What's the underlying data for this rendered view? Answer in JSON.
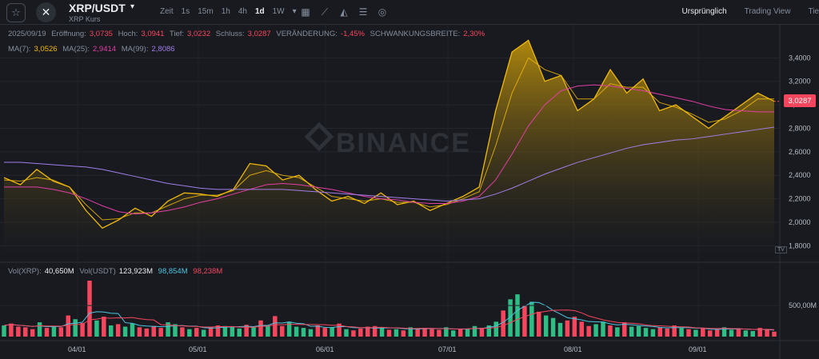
{
  "header": {
    "favorite_icon": "star-outline-icon",
    "logo_icon": "xrp-logo-icon",
    "pair": "XRP/USDT",
    "pair_caret": "▾",
    "subtitle": "XRP Kurs",
    "intervals": [
      {
        "label": "Zeit",
        "active": false
      },
      {
        "label": "1s",
        "active": false
      },
      {
        "label": "15m",
        "active": false
      },
      {
        "label": "1h",
        "active": false
      },
      {
        "label": "4h",
        "active": false
      },
      {
        "label": "1d",
        "active": true
      },
      {
        "label": "1W",
        "active": false
      },
      {
        "label": "▾",
        "active": false
      }
    ],
    "tools": [
      "calendar-icon",
      "indicator-icon",
      "chart-type-icon",
      "settings-sliders-icon",
      "target-icon"
    ],
    "views": [
      {
        "label": "Ursprünglich",
        "active": true
      },
      {
        "label": "Trading View",
        "active": false
      },
      {
        "label": "Tie",
        "active": false
      }
    ]
  },
  "ohlc_legend": {
    "date": "2025/09/19",
    "open_label": "Eröffnung:",
    "open": "3,0735",
    "high_label": "Hoch:",
    "high": "3,0941",
    "low_label": "Tief:",
    "low": "3,0232",
    "close_label": "Schluss:",
    "close": "3,0287",
    "change_label": "VERÄNDERUNG:",
    "change": "-1,45%",
    "amp_label": "SCHWANKUNGSBREITE:",
    "amp": "2,30%"
  },
  "ma_legend": {
    "ma7_label": "MA(7):",
    "ma7": "3,0526",
    "ma25_label": "MA(25):",
    "ma25": "2,9414",
    "ma99_label": "MA(99):",
    "ma99": "2,8086"
  },
  "vol_legend": {
    "vol_label": "Vol(XRP):",
    "vol": "40,650M",
    "usdt_label": "Vol(USDT)",
    "usdt": "123,923M",
    "a": "98,854M",
    "b": "98,238M"
  },
  "watermark": "BINANCE",
  "last_price_tag": "3,0287",
  "tv_tag": "TV",
  "colors": {
    "price_line": "#f0b90b",
    "ma7": "#f0b90b",
    "ma25": "#e13fa5",
    "ma99": "#a27ee8",
    "up": "#2ebd85",
    "down": "#f6465d",
    "vol_ma1": "#f6465d",
    "vol_ma2": "#4ec5de"
  },
  "chart_data": {
    "type": "area",
    "x": [
      "03/13",
      "03/17",
      "03/21",
      "03/25",
      "03/29",
      "04/02",
      "04/06",
      "04/10",
      "04/14",
      "04/18",
      "04/22",
      "04/26",
      "04/30",
      "05/04",
      "05/08",
      "05/12",
      "05/16",
      "05/20",
      "05/24",
      "05/28",
      "06/01",
      "06/05",
      "06/09",
      "06/13",
      "06/17",
      "06/21",
      "06/25",
      "06/29",
      "07/03",
      "07/07",
      "07/11",
      "07/15",
      "07/19",
      "07/23",
      "07/27",
      "07/31",
      "08/04",
      "08/08",
      "08/12",
      "08/16",
      "08/20",
      "08/24",
      "08/28",
      "09/01",
      "09/05",
      "09/09",
      "09/13",
      "09/19"
    ],
    "series": [
      {
        "values": [
          2.38,
          2.32,
          2.45,
          2.35,
          2.3,
          2.1,
          1.95,
          2.02,
          2.12,
          2.05,
          2.18,
          2.25,
          2.24,
          2.22,
          2.28,
          2.5,
          2.48,
          2.36,
          2.4,
          2.28,
          2.18,
          2.22,
          2.16,
          2.25,
          2.15,
          2.18,
          2.1,
          2.16,
          2.22,
          2.3,
          2.95,
          3.45,
          3.55,
          3.2,
          3.25,
          2.95,
          3.05,
          3.3,
          3.1,
          3.22,
          2.95,
          3.0,
          2.9,
          2.8,
          2.9,
          3.0,
          3.1,
          3.03
        ]
      },
      {
        "name": "MA(7)",
        "values": [
          2.36,
          2.35,
          2.38,
          2.36,
          2.3,
          2.15,
          2.02,
          2.03,
          2.08,
          2.08,
          2.14,
          2.2,
          2.23,
          2.23,
          2.27,
          2.4,
          2.44,
          2.4,
          2.38,
          2.3,
          2.22,
          2.2,
          2.18,
          2.2,
          2.17,
          2.17,
          2.13,
          2.15,
          2.2,
          2.26,
          2.65,
          3.1,
          3.4,
          3.3,
          3.25,
          3.05,
          3.05,
          3.18,
          3.15,
          3.15,
          3.02,
          2.98,
          2.92,
          2.85,
          2.88,
          2.95,
          3.05,
          3.05
        ]
      },
      {
        "name": "MA(25)",
        "values": [
          2.3,
          2.3,
          2.3,
          2.28,
          2.25,
          2.2,
          2.14,
          2.09,
          2.07,
          2.08,
          2.1,
          2.13,
          2.17,
          2.2,
          2.24,
          2.28,
          2.32,
          2.33,
          2.32,
          2.3,
          2.28,
          2.25,
          2.22,
          2.2,
          2.19,
          2.17,
          2.16,
          2.16,
          2.18,
          2.22,
          2.36,
          2.58,
          2.82,
          3.0,
          3.12,
          3.16,
          3.17,
          3.16,
          3.14,
          3.12,
          3.09,
          3.06,
          3.03,
          2.99,
          2.96,
          2.95,
          2.94,
          2.94
        ]
      },
      {
        "name": "MA(99)",
        "values": [
          2.51,
          2.51,
          2.5,
          2.49,
          2.48,
          2.47,
          2.45,
          2.42,
          2.39,
          2.36,
          2.33,
          2.31,
          2.29,
          2.28,
          2.28,
          2.28,
          2.28,
          2.28,
          2.27,
          2.26,
          2.25,
          2.24,
          2.23,
          2.22,
          2.21,
          2.2,
          2.19,
          2.18,
          2.19,
          2.2,
          2.24,
          2.29,
          2.35,
          2.41,
          2.46,
          2.51,
          2.55,
          2.59,
          2.63,
          2.66,
          2.68,
          2.7,
          2.71,
          2.73,
          2.75,
          2.77,
          2.79,
          2.81
        ]
      }
    ],
    "ylim": [
      1.7,
      3.6
    ],
    "yticks": [
      "1,8000",
      "2,0000",
      "2,2000",
      "2,4000",
      "2,6000",
      "2,8000",
      "3,0000",
      "3,2000",
      "3,4000"
    ],
    "xticks": [
      "04/01",
      "05/01",
      "06/01",
      "07/01",
      "08/01",
      "09/01"
    ],
    "volume": {
      "values": [
        180,
        210,
        160,
        150,
        120,
        230,
        140,
        170,
        150,
        340,
        280,
        220,
        900,
        260,
        320,
        180,
        200,
        160,
        210,
        150,
        130,
        170,
        140,
        230,
        200,
        150,
        120,
        140,
        110,
        160,
        180,
        170,
        160,
        130,
        190,
        150,
        260,
        180,
        330,
        170,
        240,
        160,
        140,
        120,
        180,
        140,
        150,
        210,
        120,
        100,
        130,
        160,
        170,
        140,
        110,
        120,
        100,
        150,
        130,
        140,
        120,
        110,
        150,
        100,
        120,
        130,
        170,
        140,
        180,
        240,
        420,
        600,
        680,
        500,
        560,
        400,
        340,
        300,
        220,
        260,
        320,
        240,
        170,
        200,
        240,
        180,
        150,
        230,
        160,
        170,
        140,
        120,
        150,
        130,
        180,
        140,
        120,
        110,
        130,
        100,
        120,
        150,
        110,
        130,
        100,
        90,
        140,
        110,
        80
      ],
      "ylim": [
        0,
        900
      ],
      "yticks": [
        "500,00M"
      ]
    }
  }
}
